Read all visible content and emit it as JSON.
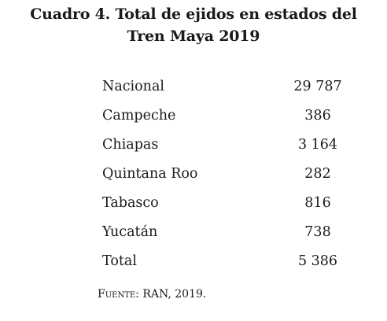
{
  "title": {
    "line1": "Cuadro 4. Total de ejidos en estados del",
    "line2": "Tren Maya 2019"
  },
  "rows": [
    {
      "name": "Nacional",
      "value": "29 787"
    },
    {
      "name": "Campeche",
      "value": "386"
    },
    {
      "name": "Chiapas",
      "value": "3 164"
    },
    {
      "name": "Quintana Roo",
      "value": "282"
    },
    {
      "name": "Tabasco",
      "value": "816"
    },
    {
      "name": "Yucatán",
      "value": "738"
    },
    {
      "name": "Total",
      "value": "5 386"
    }
  ],
  "source": {
    "label": "Fuente:",
    "text": "RAN, 2019."
  }
}
